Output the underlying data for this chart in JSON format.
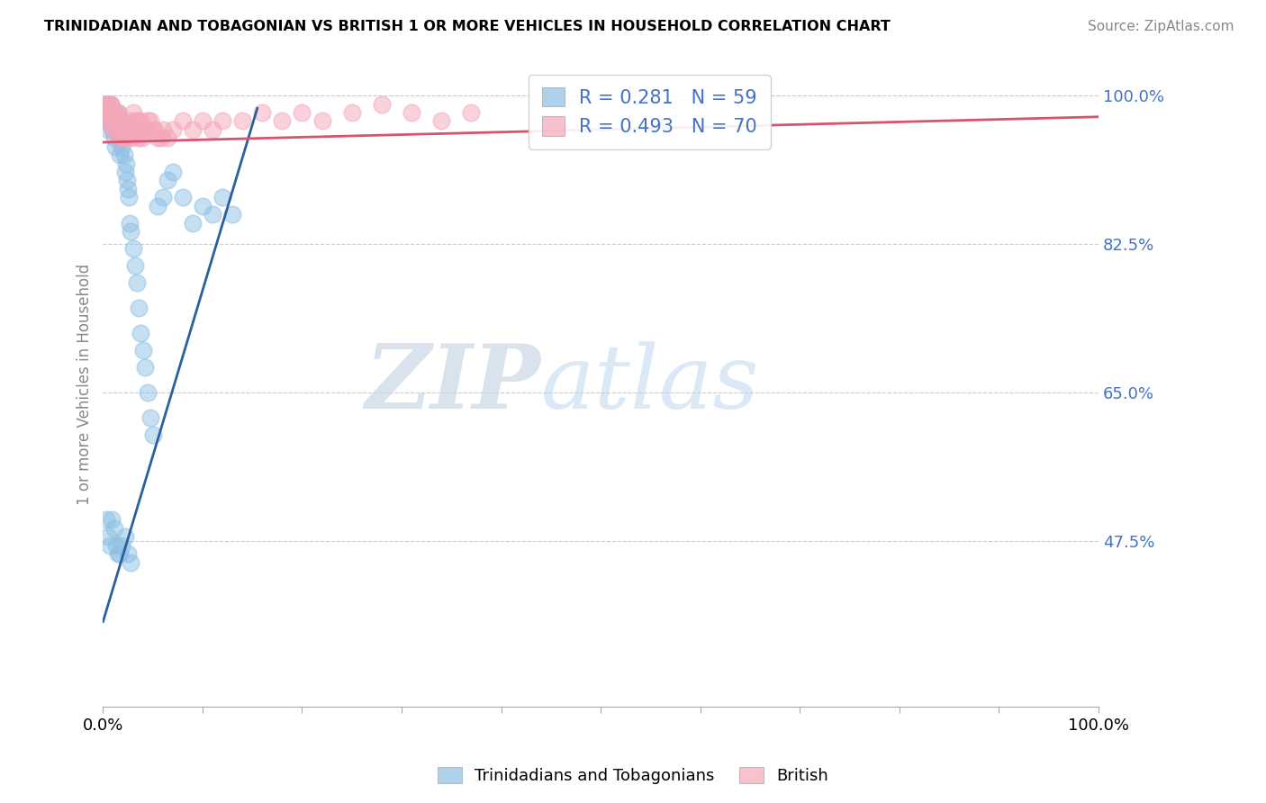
{
  "title": "TRINIDADIAN AND TOBAGONIAN VS BRITISH 1 OR MORE VEHICLES IN HOUSEHOLD CORRELATION CHART",
  "source": "Source: ZipAtlas.com",
  "ylabel": "1 or more Vehicles in Household",
  "legend_labels": [
    "Trinidadians and Tobagonians",
    "British"
  ],
  "R_trini": 0.281,
  "N_trini": 59,
  "R_british": 0.493,
  "N_british": 70,
  "blue_color": "#8ec0e4",
  "pink_color": "#f4a7b9",
  "blue_line_color": "#2b5f9e",
  "pink_line_color": "#d9536e",
  "watermark_zip": "ZIP",
  "watermark_atlas": "atlas",
  "xmin": 0.0,
  "xmax": 1.0,
  "ymin": 0.28,
  "ymax": 1.04,
  "yticks": [
    0.475,
    0.65,
    0.825,
    1.0
  ],
  "ytick_labels": [
    "47.5%",
    "65.0%",
    "82.5%",
    "100.0%"
  ],
  "xtick_positions": [
    0.0,
    0.1,
    0.2,
    0.3,
    0.4,
    0.5,
    0.6,
    0.7,
    0.8,
    0.9,
    1.0
  ],
  "blue_trend_x0": 0.0,
  "blue_trend_y0": 0.38,
  "blue_trend_x1": 0.155,
  "blue_trend_y1": 0.985,
  "pink_trend_x0": 0.0,
  "pink_trend_y0": 0.945,
  "pink_trend_x1": 1.0,
  "pink_trend_y1": 0.975,
  "trini_x": [
    0.002,
    0.003,
    0.004,
    0.005,
    0.006,
    0.007,
    0.008,
    0.009,
    0.01,
    0.011,
    0.012,
    0.013,
    0.014,
    0.015,
    0.016,
    0.017,
    0.018,
    0.019,
    0.02,
    0.021,
    0.022,
    0.023,
    0.024,
    0.025,
    0.026,
    0.027,
    0.028,
    0.03,
    0.032,
    0.034,
    0.036,
    0.038,
    0.04,
    0.042,
    0.045,
    0.048,
    0.05,
    0.055,
    0.06,
    0.065,
    0.07,
    0.08,
    0.09,
    0.1,
    0.11,
    0.12,
    0.13,
    0.003,
    0.005,
    0.007,
    0.009,
    0.011,
    0.013,
    0.015,
    0.017,
    0.019,
    0.022,
    0.025,
    0.028
  ],
  "trini_y": [
    0.97,
    0.99,
    0.98,
    0.96,
    0.97,
    0.98,
    0.99,
    0.97,
    0.96,
    0.95,
    0.94,
    0.97,
    0.96,
    0.98,
    0.95,
    0.93,
    0.96,
    0.94,
    0.95,
    0.93,
    0.91,
    0.92,
    0.9,
    0.89,
    0.88,
    0.85,
    0.84,
    0.82,
    0.8,
    0.78,
    0.75,
    0.72,
    0.7,
    0.68,
    0.65,
    0.62,
    0.6,
    0.87,
    0.88,
    0.9,
    0.91,
    0.88,
    0.85,
    0.87,
    0.86,
    0.88,
    0.86,
    0.5,
    0.48,
    0.47,
    0.5,
    0.49,
    0.47,
    0.46,
    0.46,
    0.47,
    0.48,
    0.46,
    0.45
  ],
  "british_x": [
    0.002,
    0.003,
    0.004,
    0.005,
    0.006,
    0.007,
    0.008,
    0.009,
    0.01,
    0.011,
    0.012,
    0.013,
    0.014,
    0.015,
    0.016,
    0.017,
    0.018,
    0.019,
    0.02,
    0.022,
    0.024,
    0.026,
    0.028,
    0.03,
    0.032,
    0.034,
    0.036,
    0.038,
    0.04,
    0.045,
    0.05,
    0.055,
    0.06,
    0.065,
    0.07,
    0.08,
    0.09,
    0.1,
    0.11,
    0.12,
    0.14,
    0.16,
    0.18,
    0.2,
    0.22,
    0.25,
    0.28,
    0.31,
    0.34,
    0.37,
    0.004,
    0.006,
    0.008,
    0.01,
    0.012,
    0.014,
    0.016,
    0.018,
    0.021,
    0.023,
    0.025,
    0.027,
    0.029,
    0.031,
    0.035,
    0.039,
    0.044,
    0.048,
    0.052,
    0.058
  ],
  "british_y": [
    0.99,
    0.98,
    0.99,
    0.98,
    0.97,
    0.98,
    0.99,
    0.97,
    0.96,
    0.97,
    0.98,
    0.96,
    0.97,
    0.98,
    0.95,
    0.97,
    0.96,
    0.97,
    0.96,
    0.95,
    0.96,
    0.97,
    0.96,
    0.98,
    0.97,
    0.96,
    0.95,
    0.97,
    0.96,
    0.97,
    0.96,
    0.95,
    0.96,
    0.95,
    0.96,
    0.97,
    0.96,
    0.97,
    0.96,
    0.97,
    0.97,
    0.98,
    0.97,
    0.98,
    0.97,
    0.98,
    0.99,
    0.98,
    0.97,
    0.98,
    0.99,
    0.98,
    0.99,
    0.97,
    0.98,
    0.96,
    0.97,
    0.96,
    0.95,
    0.96,
    0.95,
    0.96,
    0.95,
    0.96,
    0.97,
    0.95,
    0.96,
    0.97,
    0.96,
    0.95
  ]
}
